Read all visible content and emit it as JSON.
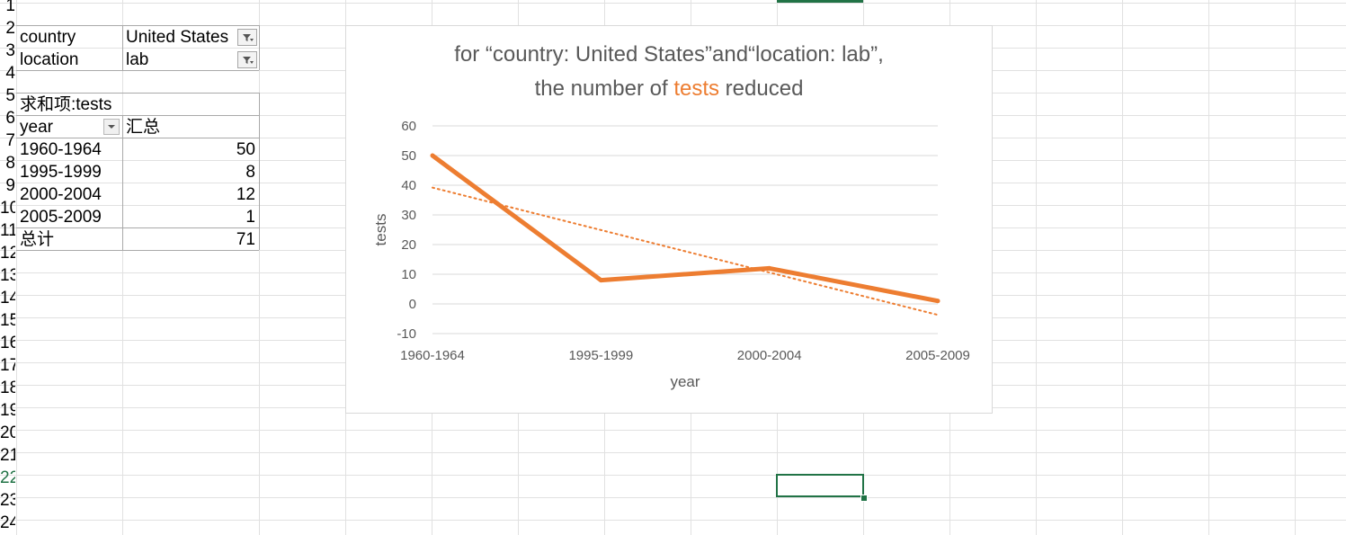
{
  "row_numbers": [
    "1",
    "2",
    "3",
    "4",
    "5",
    "6",
    "7",
    "8",
    "9",
    "10",
    "11",
    "12",
    "13",
    "14",
    "15",
    "16",
    "17",
    "18",
    "19",
    "20",
    "21",
    "22",
    "23",
    "24"
  ],
  "filters": [
    {
      "field": "country",
      "value": "United States"
    },
    {
      "field": "location",
      "value": "lab"
    }
  ],
  "pivot": {
    "value_label": "求和项:tests",
    "row_header": "year",
    "col_header": "汇总",
    "rows": [
      {
        "label": "1960-1964",
        "value": "50"
      },
      {
        "label": "1995-1999",
        "value": "8"
      },
      {
        "label": "2000-2004",
        "value": "12"
      },
      {
        "label": "2005-2009",
        "value": "1"
      }
    ],
    "total_label": "总计",
    "total_value": "71"
  },
  "colors": {
    "series": "#ed7d31",
    "gridline": "#d9d9d9",
    "axis_text": "#595959",
    "title_text": "#595959",
    "selection": "#217346"
  },
  "chart_data": {
    "type": "line",
    "title_line1": "for “country: United States”and“location: lab”,",
    "title_line2_prefix": "the number of ",
    "title_line2_highlight": "tests",
    "title_line2_suffix": " reduced",
    "xlabel": "year",
    "ylabel": "tests",
    "categories": [
      "1960-1964",
      "1995-1999",
      "2000-2004",
      "2005-2009"
    ],
    "values": [
      50,
      8,
      12,
      1
    ],
    "trendline": "linear",
    "ylim": [
      -10,
      60
    ],
    "yticks": [
      "-10",
      "0",
      "10",
      "20",
      "30",
      "40",
      "50",
      "60"
    ],
    "grid": true,
    "legend": "none"
  }
}
